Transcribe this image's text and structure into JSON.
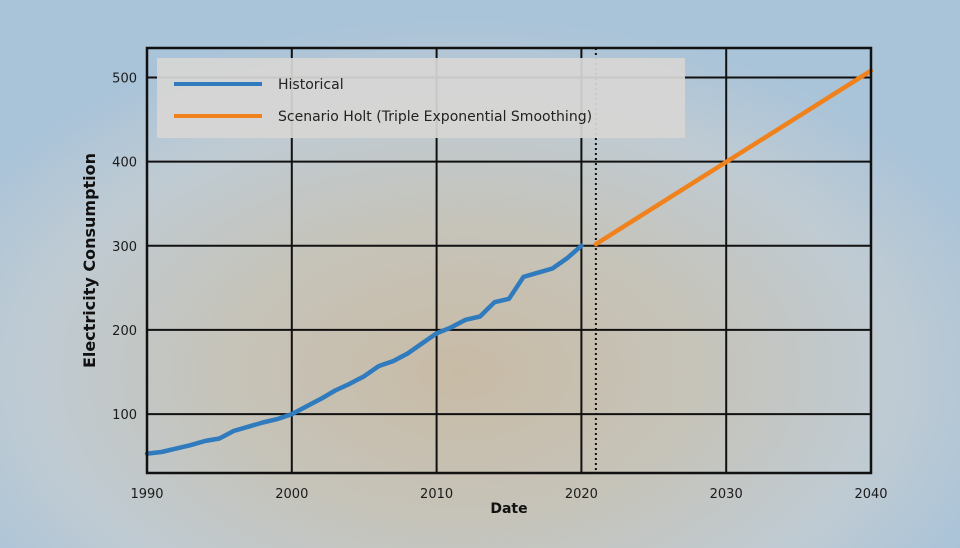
{
  "chart_data": {
    "type": "line",
    "xlabel": "Date",
    "ylabel": "Electricity Consumption",
    "xlim": [
      1990,
      2040
    ],
    "ylim": [
      30,
      535
    ],
    "x_ticks": [
      1990,
      2000,
      2010,
      2020,
      2030,
      2040
    ],
    "y_ticks": [
      100,
      200,
      300,
      400,
      500
    ],
    "grid": true,
    "legend_placement": "top-left",
    "forecast_start": 2021,
    "series": [
      {
        "name": "Historical",
        "color": "#2f7bbd",
        "x": [
          1990,
          1991,
          1992,
          1993,
          1994,
          1995,
          1996,
          1997,
          1998,
          1999,
          2000,
          2001,
          2002,
          2003,
          2004,
          2005,
          2006,
          2007,
          2008,
          2009,
          2010,
          2011,
          2012,
          2013,
          2014,
          2015,
          2016,
          2017,
          2018,
          2019,
          2020
        ],
        "values": [
          53,
          55,
          59,
          63,
          68,
          71,
          80,
          85,
          90,
          94,
          100,
          109,
          118,
          128,
          136,
          145,
          157,
          163,
          172,
          184,
          196,
          203,
          212,
          216,
          233,
          237,
          263,
          268,
          273,
          285,
          300
        ]
      },
      {
        "name": "Scenario Holt (Triple Exponential Smoothing)",
        "color": "#f0821e",
        "x": [
          2021,
          2040
        ],
        "values": [
          302,
          508
        ]
      }
    ]
  }
}
